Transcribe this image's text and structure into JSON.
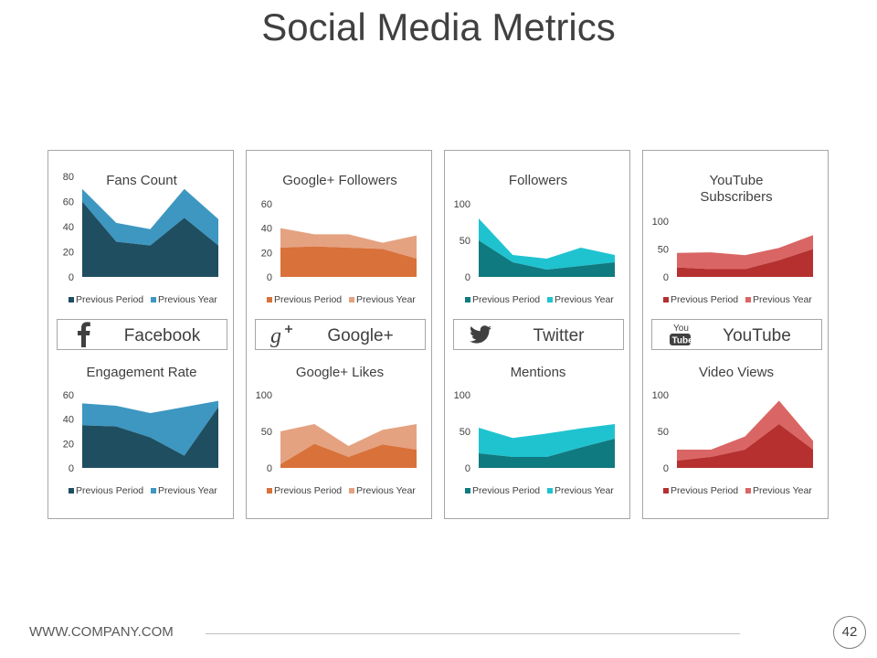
{
  "page": {
    "title": "Social Media Metrics",
    "footer_url": "WWW.COMPANY.COM",
    "page_number": "42"
  },
  "cards": [
    {
      "id": "facebook",
      "platform": "Facebook",
      "icon": "facebook-icon",
      "colors": [
        "#1f4e61",
        "#3d97c1"
      ]
    },
    {
      "id": "googleplus",
      "platform": "Google+",
      "icon": "google-plus-icon",
      "colors": [
        "#d9713a",
        "#e5a281"
      ]
    },
    {
      "id": "twitter",
      "platform": "Twitter",
      "icon": "twitter-icon",
      "colors": [
        "#0f7a80",
        "#1fc3d0"
      ]
    },
    {
      "id": "youtube",
      "platform": "YouTube",
      "icon": "youtube-icon",
      "colors": [
        "#b5302f",
        "#d96664"
      ]
    }
  ],
  "chart_data": [
    {
      "card": "facebook",
      "position": "top",
      "type": "area",
      "title": "Fans Count",
      "ylim": [
        0,
        80
      ],
      "yticks": [
        0,
        20,
        40,
        60,
        80
      ],
      "series": [
        {
          "name": "Previous Period",
          "values": [
            60,
            28,
            25,
            47,
            25
          ]
        },
        {
          "name": "Previous Year",
          "values": [
            10,
            15,
            13,
            23,
            21
          ]
        }
      ]
    },
    {
      "card": "facebook",
      "position": "bottom",
      "type": "area",
      "title": "Engagement Rate",
      "ylim": [
        0,
        60
      ],
      "yticks": [
        0,
        20,
        40,
        60
      ],
      "series": [
        {
          "name": "Previous Period",
          "values": [
            35,
            34,
            25,
            10,
            50
          ]
        },
        {
          "name": "Previous Year",
          "values": [
            18,
            17,
            20,
            40,
            5
          ]
        }
      ]
    },
    {
      "card": "googleplus",
      "position": "top",
      "type": "area",
      "title": "Google+ Followers",
      "ylim": [
        0,
        60
      ],
      "yticks": [
        0,
        20,
        40,
        60
      ],
      "series": [
        {
          "name": "Previous Period",
          "values": [
            24,
            25,
            24,
            23,
            15
          ]
        },
        {
          "name": "Previous Year",
          "values": [
            16,
            10,
            11,
            5,
            19
          ]
        }
      ]
    },
    {
      "card": "googleplus",
      "position": "bottom",
      "type": "area",
      "title": "Google+ Likes",
      "ylim": [
        0,
        100
      ],
      "yticks": [
        0,
        50,
        100
      ],
      "series": [
        {
          "name": "Previous Period",
          "values": [
            5,
            33,
            15,
            32,
            25
          ]
        },
        {
          "name": "Previous Year",
          "values": [
            45,
            27,
            15,
            20,
            35
          ]
        }
      ]
    },
    {
      "card": "twitter",
      "position": "top",
      "type": "area",
      "title": "Followers",
      "ylim": [
        0,
        100
      ],
      "yticks": [
        0,
        50,
        100
      ],
      "series": [
        {
          "name": "Previous Period",
          "values": [
            50,
            20,
            10,
            15,
            20
          ]
        },
        {
          "name": "Previous Year",
          "values": [
            30,
            10,
            15,
            25,
            10
          ]
        }
      ]
    },
    {
      "card": "twitter",
      "position": "bottom",
      "type": "area",
      "title": "Mentions",
      "ylim": [
        0,
        100
      ],
      "yticks": [
        0,
        50,
        100
      ],
      "series": [
        {
          "name": "Previous Period",
          "values": [
            20,
            15,
            15,
            28,
            40
          ]
        },
        {
          "name": "Previous Year",
          "values": [
            35,
            26,
            32,
            26,
            20
          ]
        }
      ]
    },
    {
      "card": "youtube",
      "position": "top",
      "type": "area",
      "title": "YouTube Subscribers",
      "title_lines": [
        "YouTube",
        "Subscribers"
      ],
      "ylim": [
        0,
        100
      ],
      "yticks": [
        0,
        50,
        100
      ],
      "series": [
        {
          "name": "Previous Period",
          "values": [
            17,
            14,
            14,
            30,
            50
          ]
        },
        {
          "name": "Previous Year",
          "values": [
            26,
            30,
            25,
            22,
            25
          ]
        }
      ]
    },
    {
      "card": "youtube",
      "position": "bottom",
      "type": "area",
      "title": "Video Views",
      "ylim": [
        0,
        100
      ],
      "yticks": [
        0,
        50,
        100
      ],
      "series": [
        {
          "name": "Previous Period",
          "values": [
            10,
            15,
            25,
            60,
            25
          ]
        },
        {
          "name": "Previous Year",
          "values": [
            15,
            10,
            18,
            32,
            12
          ]
        }
      ]
    }
  ]
}
